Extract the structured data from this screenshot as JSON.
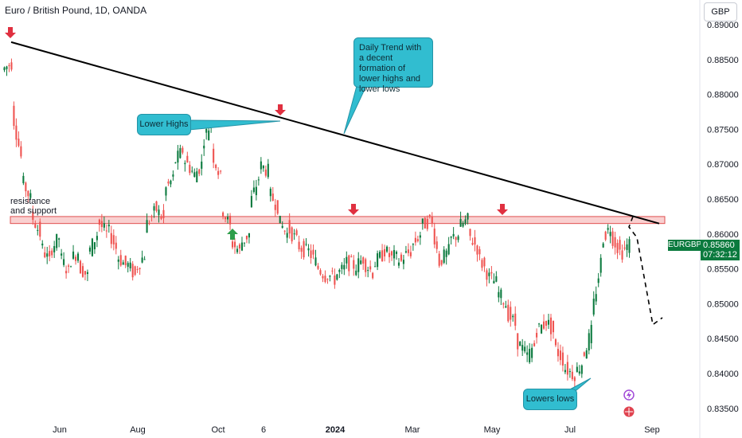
{
  "header": {
    "symbol_title": "Euro / British Pound, 1D, OANDA",
    "currency": "GBP"
  },
  "price_tag": {
    "ticker": "EURGBP",
    "price": "0.85860",
    "countdown": "07:32:12"
  },
  "annotations": {
    "lower_highs": "Lower Highs",
    "daily_trend": "Daily Trend with a decent formation of lower highs and lower lows",
    "resistance_support": "resistance and support",
    "lowers_lows": "Lowers lows"
  },
  "colors": {
    "bull": "#26a69a",
    "bull_dark": "#0b7a3e",
    "bear": "#ef5350",
    "zone_fill": "#f8c8c8",
    "zone_stroke": "#e05050",
    "callout": "#31bdd0",
    "arrow_down": "#e03040",
    "arrow_up": "#2e9e4a",
    "trendline": "#000000"
  },
  "chart_data": {
    "type": "candlestick",
    "title": "Euro / British Pound, 1D, OANDA",
    "xlabel": "",
    "ylabel": "",
    "ylim": [
      0.83,
      0.89
    ],
    "y_ticks": [
      "0.89000",
      "0.88500",
      "0.88000",
      "0.87500",
      "0.87000",
      "0.86500",
      "0.86000",
      "0.85500",
      "0.85000",
      "0.84500",
      "0.84000",
      "0.83500"
    ],
    "x_ticks": [
      "Jun",
      "Aug",
      "Oct",
      "6",
      "2024",
      "Mar",
      "May",
      "Jul",
      "Sep"
    ],
    "series": [
      {
        "points": [
          [
            0.8835,
            0.8845
          ],
          [
            0.878,
            0.871
          ],
          [
            0.868,
            0.865
          ],
          [
            0.863,
            0.86
          ],
          [
            0.8585,
            0.856
          ],
          [
            0.8575,
            0.8595
          ],
          [
            0.857,
            0.8545
          ],
          [
            0.856,
            0.8575
          ],
          [
            0.8555,
            0.854
          ],
          [
            0.857,
            0.86
          ],
          [
            0.862,
            0.86
          ],
          [
            0.861,
            0.858
          ],
          [
            0.857,
            0.8555
          ],
          [
            0.856,
            0.854
          ],
          [
            0.855,
            0.857
          ],
          [
            0.861,
            0.863
          ],
          [
            0.864,
            0.862
          ],
          [
            0.866,
            0.868
          ],
          [
            0.87,
            0.872
          ],
          [
            0.871,
            0.869
          ],
          [
            0.868,
            0.87
          ],
          [
            0.873,
            0.876
          ],
          [
            0.872,
            0.868
          ],
          [
            0.864,
            0.861
          ],
          [
            0.859,
            0.8575
          ],
          [
            0.8585,
            0.86
          ],
          [
            0.864,
            0.868
          ],
          [
            0.87,
            0.869
          ],
          [
            0.866,
            0.864
          ],
          [
            0.862,
            0.86
          ],
          [
            0.861,
            0.859
          ],
          [
            0.8585,
            0.8575
          ],
          [
            0.858,
            0.856
          ],
          [
            0.8555,
            0.854
          ],
          [
            0.8545,
            0.8535
          ],
          [
            0.854,
            0.855
          ],
          [
            0.856,
            0.8555
          ],
          [
            0.855,
            0.8565
          ],
          [
            0.856,
            0.8545
          ],
          [
            0.8555,
            0.857
          ],
          [
            0.858,
            0.8565
          ],
          [
            0.857,
            0.856
          ],
          [
            0.8565,
            0.8575
          ],
          [
            0.858,
            0.86
          ],
          [
            0.861,
            0.862
          ],
          [
            0.863,
            0.856
          ],
          [
            0.856,
            0.8575
          ],
          [
            0.859,
            0.86
          ],
          [
            0.861,
            0.862
          ],
          [
            0.86,
            0.858
          ],
          [
            0.857,
            0.8545
          ],
          [
            0.854,
            0.853
          ],
          [
            0.852,
            0.85
          ],
          [
            0.849,
            0.847
          ],
          [
            0.845,
            0.843
          ],
          [
            0.842,
            0.844
          ],
          [
            0.846,
            0.847
          ],
          [
            0.848,
            0.846
          ],
          [
            0.844,
            0.842
          ],
          [
            0.841,
            0.84
          ],
          [
            0.8395,
            0.8415
          ],
          [
            0.842,
            0.846
          ],
          [
            0.848,
            0.856
          ],
          [
            0.859,
            0.861
          ],
          [
            0.86,
            0.8575
          ],
          [
            0.857,
            0.8586
          ]
        ]
      }
    ],
    "overlays": {
      "resistance_support_zone": [
        0.8615,
        0.8625
      ],
      "trendline": {
        "from": [
          "2023-05 start",
          0.8875
        ],
        "to": [
          "2024-08 end",
          0.8615
        ]
      },
      "projected_path": [
        0.8625,
        0.861,
        0.8595,
        0.847,
        0.848
      ]
    }
  }
}
